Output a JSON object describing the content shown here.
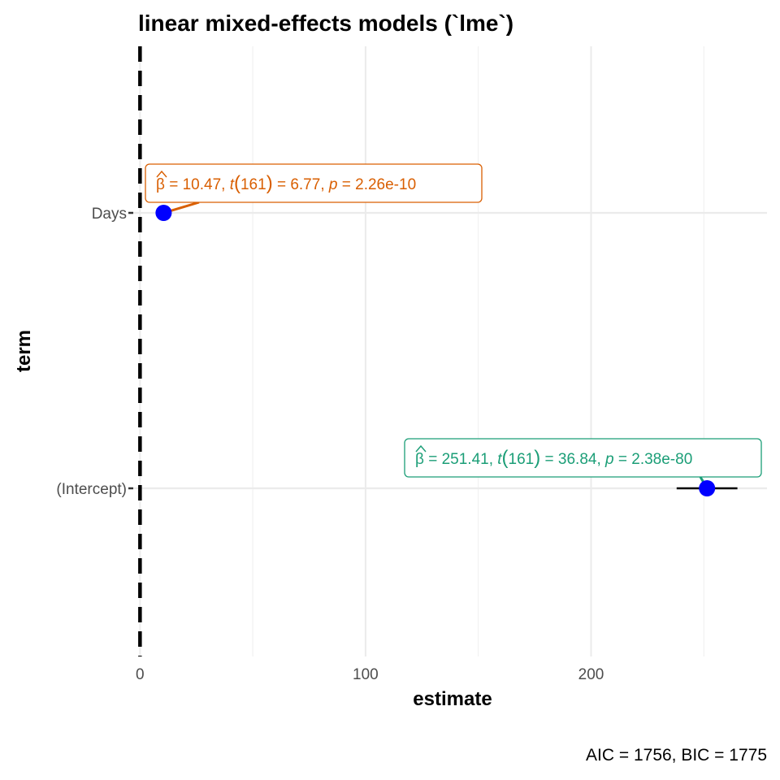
{
  "chart_data": {
    "type": "scatter",
    "title": "linear mixed-effects models (`lme`)",
    "xlabel": "estimate",
    "ylabel": "term",
    "xlim": [
      -3,
      278
    ],
    "xticks": [
      0,
      100,
      200
    ],
    "xminor": [
      50,
      150,
      250
    ],
    "reference_line": 0,
    "grid": true,
    "categories": [
      "(Intercept)",
      "Days"
    ],
    "points": [
      {
        "term": "Days",
        "estimate": 10.47,
        "conf_low": 7.43,
        "conf_high": 13.52,
        "label": {
          "beta": "10.47",
          "t_df": "161",
          "t": "6.77",
          "p": "2.26e-10"
        },
        "color": "#D95F02"
      },
      {
        "term": "(Intercept)",
        "estimate": 251.41,
        "conf_low": 237.94,
        "conf_high": 264.88,
        "label": {
          "beta": "251.41",
          "t_df": "161",
          "t": "36.84",
          "p": "2.38e-80"
        },
        "color": "#1B9E77"
      }
    ],
    "caption": "AIC = 1756, BIC = 1775",
    "point_color": "#0000FF"
  }
}
